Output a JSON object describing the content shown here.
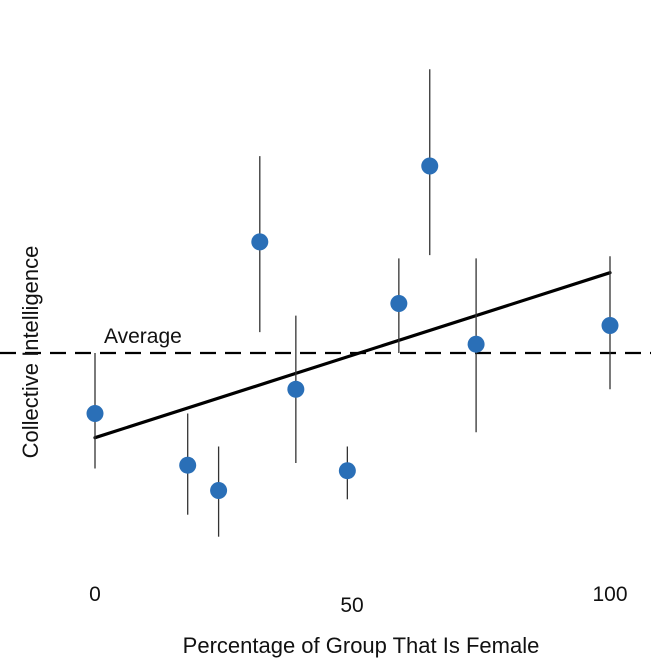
{
  "chart_data": {
    "type": "scatter",
    "xlabel": "Percentage of Group That Is Female",
    "ylabel": "Collective Intelligence",
    "x_ticks": [
      "0",
      "50",
      "100"
    ],
    "x_tick_values": [
      0,
      50,
      100
    ],
    "xlim": [
      0,
      100
    ],
    "ylim": [
      -3,
      3
    ],
    "points": [
      {
        "x": 0,
        "y": -0.55,
        "low": -1.05,
        "high": 0
      },
      {
        "x": 18,
        "y": -1.02,
        "low": -1.47,
        "high": -0.55
      },
      {
        "x": 24,
        "y": -1.25,
        "low": -1.67,
        "high": -0.85
      },
      {
        "x": 32,
        "y": 1.01,
        "low": 0.19,
        "high": 1.79
      },
      {
        "x": 39,
        "y": -0.33,
        "low": -1.0,
        "high": 0.34
      },
      {
        "x": 49,
        "y": -1.07,
        "low": -1.33,
        "high": -0.85
      },
      {
        "x": 59,
        "y": 0.45,
        "low": 0.0,
        "high": 0.86
      },
      {
        "x": 65,
        "y": 1.7,
        "low": 0.89,
        "high": 2.58
      },
      {
        "x": 74,
        "y": 0.08,
        "low": -0.72,
        "high": 0.86
      },
      {
        "x": 100,
        "y": 0.25,
        "low": -0.33,
        "high": 0.88
      }
    ],
    "trend_line": {
      "x": [
        0,
        100
      ],
      "y": [
        -0.77,
        0.73
      ]
    },
    "reference_line": {
      "y": 0,
      "label": "Average"
    },
    "grid": false,
    "colors": {
      "points": "#2a6fb7",
      "error_bars": "#333333",
      "trend": "#000000",
      "reference": "#000000",
      "text": "#111111"
    }
  }
}
